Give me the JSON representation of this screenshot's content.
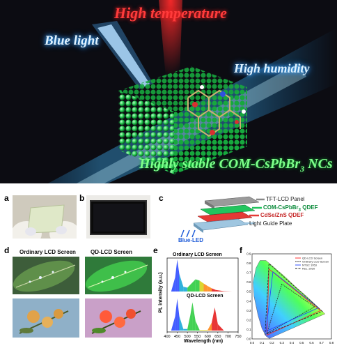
{
  "hero": {
    "label_high_temperature": "High temperature",
    "label_blue_light": "Blue light",
    "label_high_humidity": "High humidity",
    "label_stable_prefix": "Highly stable COM-CsPbBr",
    "label_stable_sub": "3",
    "label_stable_suffix": " NCs"
  },
  "panels": {
    "a": "a",
    "b": "b",
    "c": "c",
    "d": "d",
    "e": "e",
    "f": "f"
  },
  "panel_c": {
    "layer_tft": "TFT-LCD Panel",
    "layer_com": "COM-CsPbBr",
    "layer_com_sub": "3",
    "layer_com_suffix": " QDEF",
    "layer_cdse": "CdSe/ZnS QDEF",
    "layer_lgp": "Light Guide Plate",
    "blue_led": "Blue-LED"
  },
  "panel_d": {
    "ordinary": "Ordinary LCD Screen",
    "qd": "QD-LCD Screen"
  },
  "panel_e": {
    "top_label": "Ordinary LCD Screen",
    "bottom_label": "QD-LCD Screen",
    "ylabel": "PL intensity (a.u.)",
    "xlabel": "Wavelength (nm)",
    "xticks": [
      "400",
      "450",
      "500",
      "550",
      "600",
      "650",
      "700",
      "750"
    ]
  },
  "panel_f": {
    "legend": [
      "QD-LCD Screen",
      "Ordinary LCD Screen",
      "NTSC 1953",
      "Rec. 2020"
    ],
    "xticks": [
      "0.0",
      "0.1",
      "0.2",
      "0.3",
      "0.4",
      "0.5",
      "0.6",
      "0.7",
      "0.8"
    ],
    "yticks": [
      "0.0",
      "0.1",
      "0.2",
      "0.3",
      "0.4",
      "0.5",
      "0.6",
      "0.7",
      "0.8",
      "0.9"
    ]
  },
  "chart_data": [
    {
      "type": "line",
      "xlabel": "Wavelength (nm)",
      "ylabel": "PL intensity (a.u.)",
      "xlim": [
        400,
        750
      ],
      "series": [
        {
          "name": "Ordinary LCD Screen",
          "x": [
            420,
            440,
            450,
            460,
            480,
            500,
            520,
            540,
            560,
            580,
            600,
            620,
            640,
            680,
            720
          ],
          "y": [
            0.0,
            0.45,
            1.0,
            0.55,
            0.15,
            0.12,
            0.25,
            0.38,
            0.34,
            0.25,
            0.17,
            0.1,
            0.05,
            0.01,
            0.0
          ]
        },
        {
          "name": "QD-LCD Screen",
          "x": [
            420,
            440,
            450,
            460,
            480,
            500,
            515,
            525,
            540,
            560,
            600,
            620,
            635,
            650,
            680
          ],
          "y": [
            0.0,
            0.45,
            1.0,
            0.45,
            0.05,
            0.05,
            0.5,
            0.88,
            0.3,
            0.02,
            0.02,
            0.25,
            0.72,
            0.2,
            0.0
          ]
        }
      ]
    },
    {
      "type": "scatter",
      "xlim": [
        0,
        0.8
      ],
      "ylim": [
        0,
        0.9
      ],
      "series": [
        {
          "name": "QD-LCD Screen",
          "x": [
            0.69,
            0.17,
            0.15
          ],
          "y": [
            0.3,
            0.74,
            0.04
          ]
        },
        {
          "name": "Ordinary LCD Screen",
          "x": [
            0.63,
            0.3,
            0.15
          ],
          "y": [
            0.34,
            0.58,
            0.06
          ]
        },
        {
          "name": "NTSC 1953",
          "x": [
            0.67,
            0.21,
            0.14
          ],
          "y": [
            0.33,
            0.71,
            0.08
          ]
        },
        {
          "name": "Rec. 2020",
          "x": [
            0.708,
            0.17,
            0.131
          ],
          "y": [
            0.292,
            0.797,
            0.046
          ]
        }
      ]
    }
  ]
}
